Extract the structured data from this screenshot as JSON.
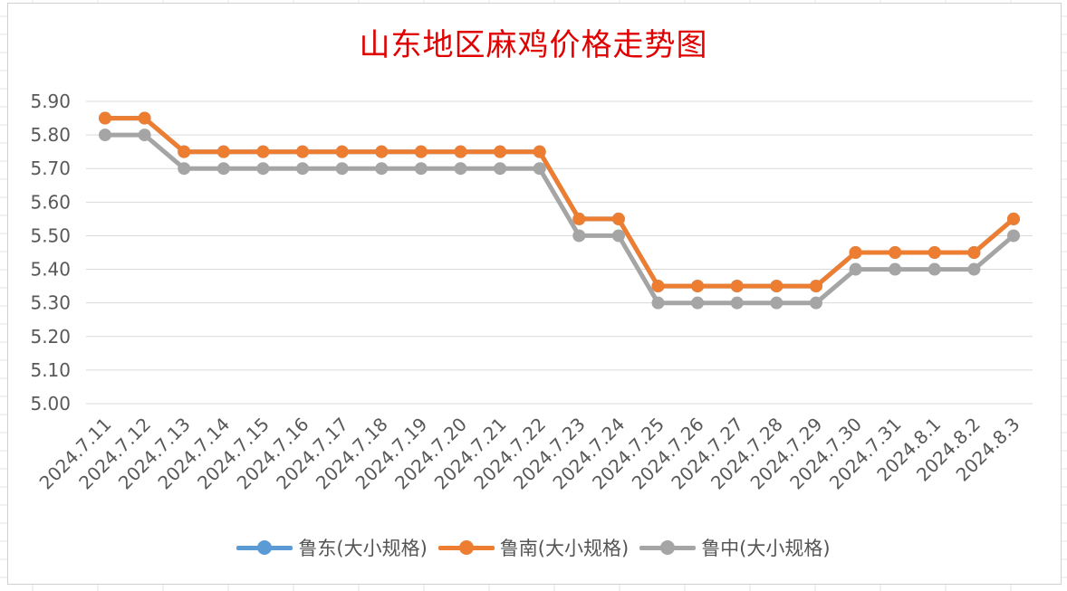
{
  "chart_data": {
    "type": "line",
    "title": "山东地区麻鸡价格走势图",
    "xlabel": "",
    "ylabel": "",
    "ylim": [
      5.0,
      5.9
    ],
    "ytick_step": 0.1,
    "grid": true,
    "legend_position": "bottom",
    "categories": [
      "2024.7.11",
      "2024.7.12",
      "2024.7.13",
      "2024.7.14",
      "2024.7.15",
      "2024.7.16",
      "2024.7.17",
      "2024.7.18",
      "2024.7.19",
      "2024.7.20",
      "2024.7.21",
      "2024.7.22",
      "2024.7.23",
      "2024.7.24",
      "2024.7.25",
      "2024.7.26",
      "2024.7.27",
      "2024.7.28",
      "2024.7.29",
      "2024.7.30",
      "2024.7.31",
      "2024.8.1",
      "2024.8.2",
      "2024.8.3"
    ],
    "series": [
      {
        "name": "鲁东(大小规格)",
        "color": "#5b9bd5",
        "values": [
          5.85,
          5.85,
          5.75,
          5.75,
          5.75,
          5.75,
          5.75,
          5.75,
          5.75,
          5.75,
          5.75,
          5.75,
          5.55,
          5.55,
          5.35,
          5.35,
          5.35,
          5.35,
          5.35,
          5.45,
          5.45,
          5.45,
          5.45,
          5.55
        ]
      },
      {
        "name": "鲁南(大小规格)",
        "color": "#ed7d31",
        "values": [
          5.85,
          5.85,
          5.75,
          5.75,
          5.75,
          5.75,
          5.75,
          5.75,
          5.75,
          5.75,
          5.75,
          5.75,
          5.55,
          5.55,
          5.35,
          5.35,
          5.35,
          5.35,
          5.35,
          5.45,
          5.45,
          5.45,
          5.45,
          5.55
        ]
      },
      {
        "name": "鲁中(大小规格)",
        "color": "#a5a5a5",
        "values": [
          5.8,
          5.8,
          5.7,
          5.7,
          5.7,
          5.7,
          5.7,
          5.7,
          5.7,
          5.7,
          5.7,
          5.7,
          5.5,
          5.5,
          5.3,
          5.3,
          5.3,
          5.3,
          5.3,
          5.4,
          5.4,
          5.4,
          5.4,
          5.5
        ]
      }
    ]
  }
}
